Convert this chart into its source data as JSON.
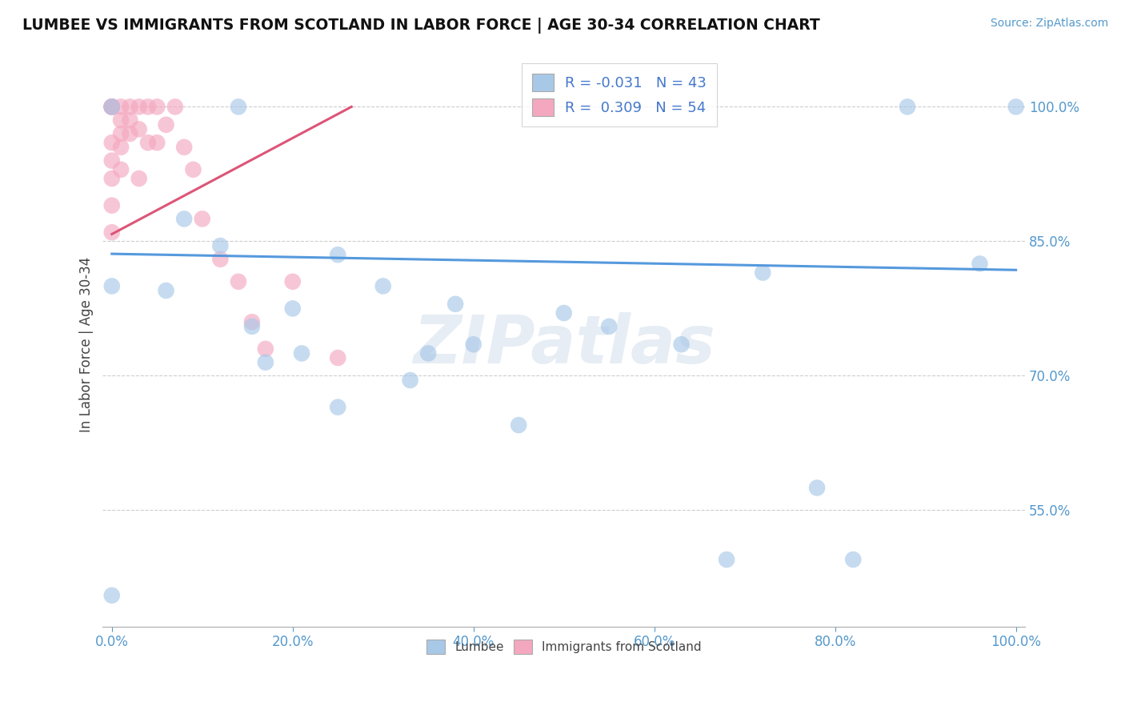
{
  "title": "LUMBEE VS IMMIGRANTS FROM SCOTLAND IN LABOR FORCE | AGE 30-34 CORRELATION CHART",
  "source_text": "Source: ZipAtlas.com",
  "ylabel": "In Labor Force | Age 30-34",
  "watermark": "ZIPatlas",
  "legend_r_blue": "-0.031",
  "legend_n_blue": "43",
  "legend_r_pink": "0.309",
  "legend_n_pink": "54",
  "xlim": [
    -0.01,
    1.01
  ],
  "ylim": [
    0.42,
    1.05
  ],
  "blue_color": "#a8c8e8",
  "pink_color": "#f4a8c0",
  "blue_line_color": "#5599dd",
  "pink_line_color": "#dd5577",
  "grid_color": "#c8c8c8",
  "background_color": "#ffffff",
  "blue_scatter_x": [
    0.0,
    0.0,
    0.0,
    0.06,
    0.08,
    0.12,
    0.14,
    0.155,
    0.17,
    0.2,
    0.21,
    0.25,
    0.25,
    0.3,
    0.33,
    0.35,
    0.38,
    0.4,
    0.45,
    0.5,
    0.55,
    0.63,
    0.68,
    0.72,
    0.78,
    0.82,
    0.88,
    0.96,
    1.0
  ],
  "blue_scatter_y": [
    0.455,
    0.8,
    1.0,
    0.795,
    0.875,
    0.845,
    1.0,
    0.755,
    0.715,
    0.775,
    0.725,
    0.665,
    0.835,
    0.8,
    0.695,
    0.725,
    0.78,
    0.735,
    0.645,
    0.77,
    0.755,
    0.735,
    0.495,
    0.815,
    0.575,
    0.495,
    1.0,
    0.825,
    1.0
  ],
  "pink_scatter_x": [
    0.0,
    0.0,
    0.0,
    0.0,
    0.0,
    0.0,
    0.0,
    0.0,
    0.0,
    0.0,
    0.0,
    0.01,
    0.01,
    0.01,
    0.01,
    0.01,
    0.02,
    0.02,
    0.02,
    0.03,
    0.03,
    0.03,
    0.04,
    0.04,
    0.05,
    0.05,
    0.06,
    0.07,
    0.08,
    0.09,
    0.1,
    0.12,
    0.14,
    0.155,
    0.17,
    0.2,
    0.25
  ],
  "pink_scatter_y": [
    1.0,
    1.0,
    1.0,
    1.0,
    1.0,
    1.0,
    0.96,
    0.94,
    0.92,
    0.89,
    0.86,
    1.0,
    0.985,
    0.97,
    0.955,
    0.93,
    1.0,
    0.985,
    0.97,
    1.0,
    0.975,
    0.92,
    1.0,
    0.96,
    1.0,
    0.96,
    0.98,
    1.0,
    0.955,
    0.93,
    0.875,
    0.83,
    0.805,
    0.76,
    0.73,
    0.805,
    0.72
  ],
  "blue_trend_x": [
    0.0,
    1.0
  ],
  "blue_trend_y": [
    0.836,
    0.818
  ],
  "pink_trend_x": [
    0.0,
    0.265
  ],
  "pink_trend_y": [
    0.858,
    1.0
  ],
  "y_ticks": [
    0.55,
    0.7,
    0.85,
    1.0
  ],
  "y_tick_labels": [
    "55.0%",
    "70.0%",
    "85.0%",
    "100.0%"
  ],
  "x_ticks": [
    0.0,
    0.2,
    0.4,
    0.6,
    0.8,
    1.0
  ],
  "x_tick_labels": [
    "0.0%",
    "20.0%",
    "40.0%",
    "60.0%",
    "80.0%",
    "100.0%"
  ]
}
